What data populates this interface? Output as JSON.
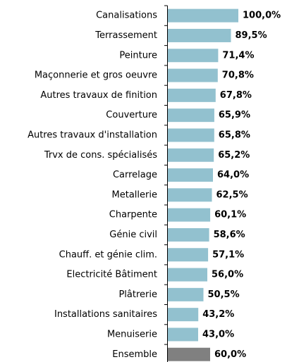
{
  "chart_data": {
    "type": "bar",
    "orientation": "horizontal",
    "categories": [
      "Canalisations",
      "Terrassement",
      "Peinture",
      "Maçonnerie et gros oeuvre",
      "Autres travaux de finition",
      "Couverture",
      "Autres travaux d'installation",
      "Trvx de cons. spécialisés",
      "Carrelage",
      "Metallerie",
      "Charpente",
      "Génie civil",
      "Chauff. et génie clim.",
      "Electricité Bâtiment",
      "Plâtrerie",
      "Installations sanitaires",
      "Menuiserie",
      "Ensemble"
    ],
    "values": [
      100.0,
      89.5,
      71.4,
      70.8,
      67.8,
      65.9,
      65.8,
      65.2,
      64.0,
      62.5,
      60.1,
      58.6,
      57.1,
      56.0,
      50.5,
      43.2,
      43.0,
      60.0
    ],
    "value_labels": [
      "100,0%",
      "89,5%",
      "71,4%",
      "70,8%",
      "67,8%",
      "65,9%",
      "65,8%",
      "65,2%",
      "64,0%",
      "62,5%",
      "60,1%",
      "58,6%",
      "57,1%",
      "56,0%",
      "50,5%",
      "43,2%",
      "43,0%",
      "60,0%"
    ],
    "colors": [
      "#92c1cf",
      "#92c1cf",
      "#92c1cf",
      "#92c1cf",
      "#92c1cf",
      "#92c1cf",
      "#92c1cf",
      "#92c1cf",
      "#92c1cf",
      "#92c1cf",
      "#92c1cf",
      "#92c1cf",
      "#92c1cf",
      "#92c1cf",
      "#92c1cf",
      "#92c1cf",
      "#92c1cf",
      "#808080"
    ]
  }
}
